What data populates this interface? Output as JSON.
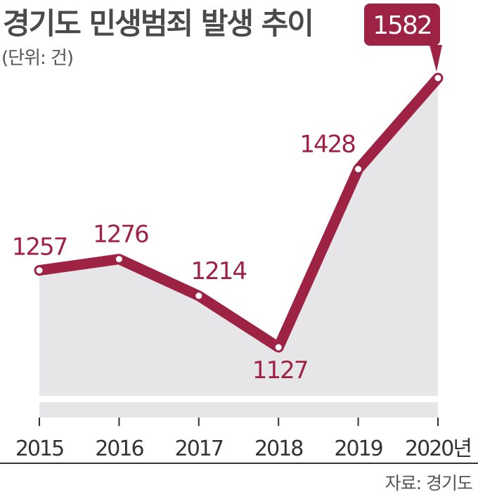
{
  "header": {
    "title": "경기도 민생범죄 발생 추이",
    "unit_note": "(단위: 건)"
  },
  "footer": {
    "source": "자료: 경기도"
  },
  "colors": {
    "line": "#9e2244",
    "area": "#e6e6e8",
    "callout": "#9e2244"
  },
  "chart_data": {
    "type": "area",
    "title": "경기도 민생범죄 발생 추이",
    "ylabel": "(단위: 건)",
    "xlabel": "",
    "x": [
      "2015",
      "2016",
      "2017",
      "2018",
      "2019",
      "2020년"
    ],
    "values": [
      1257,
      1276,
      1214,
      1127,
      1428,
      1582
    ],
    "data_labels": [
      "1257",
      "1276",
      "1214",
      "1127",
      "1428",
      "1582"
    ],
    "highlight_label": "1582",
    "grid": false,
    "legend": "none"
  }
}
